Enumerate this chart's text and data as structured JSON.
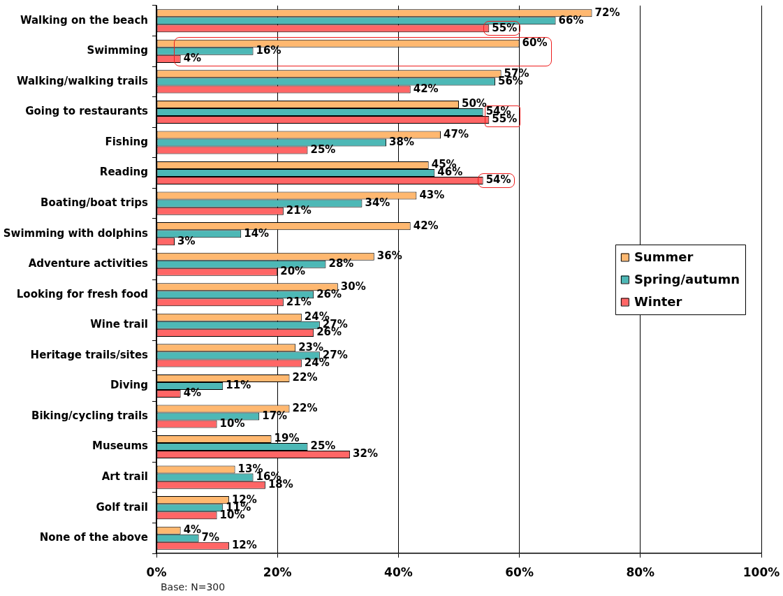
{
  "chart_data": {
    "type": "bar",
    "orientation": "horizontal",
    "categories": [
      "Walking on the beach",
      "Swimming",
      "Walking/walking trails",
      "Going to restaurants",
      "Fishing",
      "Reading",
      "Boating/boat trips",
      "Swimming with dolphins",
      "Adventure activities",
      "Looking for fresh food",
      "Wine trail",
      "Heritage trails/sites",
      "Diving",
      "Biking/cycling trails",
      "Museums",
      "Art trail",
      "Golf trail",
      "None of the above"
    ],
    "series": [
      {
        "name": "Summer",
        "color": "#ffb870",
        "values": [
          72,
          60,
          57,
          50,
          47,
          45,
          43,
          42,
          36,
          30,
          24,
          23,
          22,
          22,
          19,
          13,
          12,
          4
        ],
        "value_labels": [
          "72%",
          "60%",
          "57%",
          "50%",
          "47%",
          "45%",
          "43%",
          "42%",
          "36%",
          "30%",
          "24%",
          "23%",
          "22%",
          "22%",
          "19%",
          "13%",
          "12%",
          "4%"
        ]
      },
      {
        "name": "Spring/autumn",
        "color": "#4db8b6",
        "values": [
          66,
          16,
          56,
          54,
          38,
          46,
          34,
          14,
          28,
          26,
          27,
          27,
          11,
          17,
          25,
          16,
          11,
          7
        ],
        "value_labels": [
          "66%",
          "16%",
          "56%",
          "54%",
          "38%",
          "46%",
          "34%",
          "14%",
          "28%",
          "26%",
          "27%",
          "27%",
          "11%",
          "17%",
          "25%",
          "16%",
          "11%",
          "7%"
        ]
      },
      {
        "name": "Winter",
        "color": "#ff6666",
        "values": [
          55,
          4,
          42,
          55,
          25,
          54,
          21,
          3,
          20,
          21,
          26,
          24,
          4,
          10,
          32,
          18,
          10,
          12
        ],
        "value_labels": [
          "55%",
          "4%",
          "42%",
          "55%",
          "25%",
          "54%",
          "21%",
          "3%",
          "20%",
          "21%",
          "26%",
          "24%",
          "4%",
          "10%",
          "32%",
          "18%",
          "10%",
          "12%"
        ]
      }
    ],
    "xlim": [
      0,
      100
    ],
    "xticks": [
      {
        "value": 0,
        "label": "0%"
      },
      {
        "value": 20,
        "label": "20%"
      },
      {
        "value": 40,
        "label": "40%"
      },
      {
        "value": 60,
        "label": "60%"
      },
      {
        "value": 80,
        "label": "80%"
      },
      {
        "value": 100,
        "label": "100%"
      }
    ],
    "grid": "x",
    "legend": "right",
    "annotations": [
      "Base: N=300"
    ]
  }
}
